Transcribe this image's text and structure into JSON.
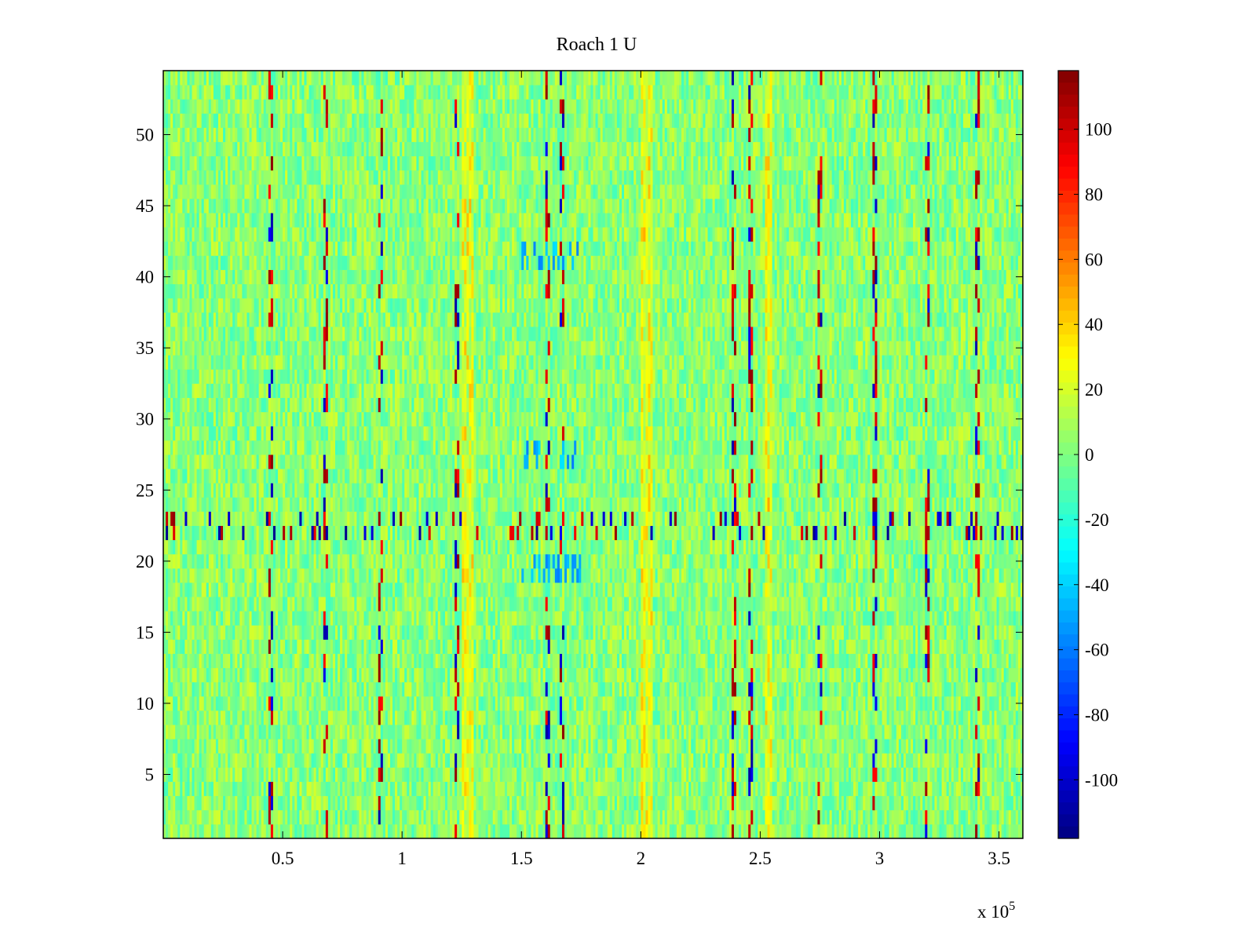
{
  "chart_data": {
    "type": "heatmap",
    "title": "Roach 1 U",
    "xlabel": "",
    "ylabel": "",
    "x_range": [
      0,
      360000
    ],
    "y_range": [
      0.5,
      54.5
    ],
    "rows": 54,
    "x_ticks": [
      0.5,
      1,
      1.5,
      2,
      2.5,
      3,
      3.5
    ],
    "x_tick_labels": [
      "0.5",
      "1",
      "1.5",
      "2",
      "2.5",
      "3",
      "3.5"
    ],
    "x_exponent_label": "x 10",
    "x_exponent_power": "5",
    "y_ticks": [
      5,
      10,
      15,
      20,
      25,
      30,
      35,
      40,
      45,
      50
    ],
    "y_tick_labels": [
      "5",
      "10",
      "15",
      "20",
      "25",
      "30",
      "35",
      "40",
      "45",
      "50"
    ],
    "colorbar": {
      "colormap": "jet",
      "range": [
        -118,
        118
      ],
      "ticks": [
        100,
        80,
        60,
        40,
        20,
        0,
        -20,
        -40,
        -60,
        -80,
        -100
      ],
      "tick_labels": [
        "100",
        "80",
        "60",
        "40",
        "20",
        "0",
        "-20",
        "-40",
        "-60",
        "-80",
        "-100"
      ]
    },
    "baseline_value_range": [
      -15,
      20
    ],
    "warm_column_bands_x": [
      125000,
      130000,
      200000,
      205000,
      252000,
      255000
    ],
    "spike_rows": [
      22,
      23
    ],
    "spike_columns_x": [
      45000,
      68000,
      91000,
      123000,
      161000,
      167000,
      239000,
      246000,
      275000,
      298000,
      320000,
      341000
    ],
    "cold_patch_rows": [
      19,
      20,
      27,
      28,
      41,
      42
    ]
  }
}
